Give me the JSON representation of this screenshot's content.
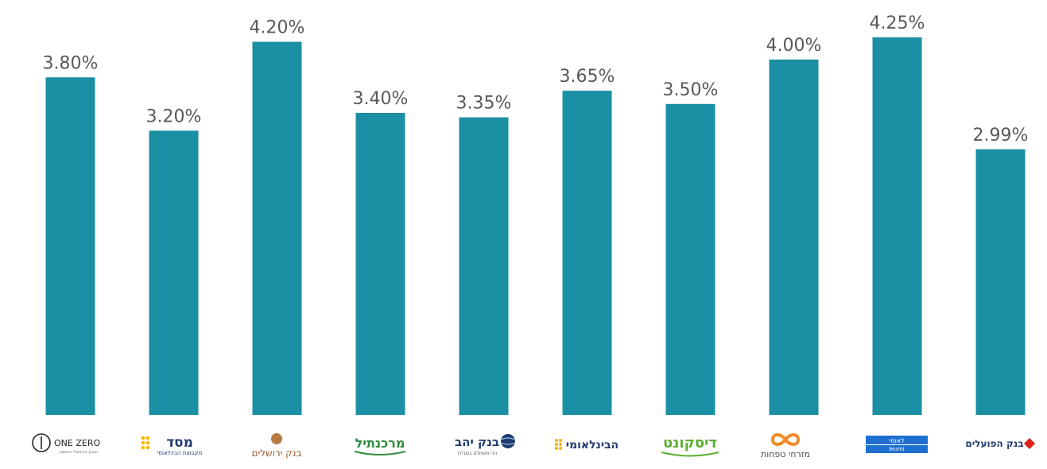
{
  "chart_data": {
    "type": "bar",
    "categories": [
      "ONE ZERO",
      "מסד",
      "בנק ירושלים",
      "מרכנתיל",
      "בנק יהב",
      "הבינלאומי",
      "דיסקונט",
      "מזרחי טפחות",
      "לאומי",
      "בנק הפועלים"
    ],
    "values": [
      3.8,
      3.2,
      4.2,
      3.4,
      3.35,
      3.65,
      3.5,
      4.0,
      4.25,
      2.99
    ],
    "value_labels": [
      "3.80%",
      "3.20%",
      "4.20%",
      "3.40%",
      "3.35%",
      "3.65%",
      "3.50%",
      "4.00%",
      "4.25%",
      "2.99%"
    ],
    "ylim": [
      0,
      4.25
    ],
    "grid": false,
    "bar_color": "#1b8fa3",
    "logo_subtexts": {
      "ONE ZERO": "הבנק הדיגיטלי הראשון",
      "מסד": "מקבוצת הבינלאומי",
      "בנק יהב": "הכי משתלם בשבילך",
      "לאומי": "leumi"
    },
    "logo_colors": {
      "ONE ZERO": "#222222",
      "מסד": "#1f3a6e",
      "מסד_accent": "#f2b705",
      "בנק ירושלים": "#9a5a2c",
      "מרכנתיל": "#2e8b3e",
      "בנק יהב": "#1f3a6e",
      "הבינלאומי": "#1f3a6e",
      "הבינלאומי_accent": "#f2b705",
      "דיסקונט": "#5cae32",
      "מזרחי טפחות": "#4a4a4a",
      "מזרחי טפחות_accent": "#f28c28",
      "לאומי": "#1f6fd1",
      "בנק הפועלים": "#1f3a6e",
      "בנק הפועלים_accent": "#e2231a"
    }
  }
}
